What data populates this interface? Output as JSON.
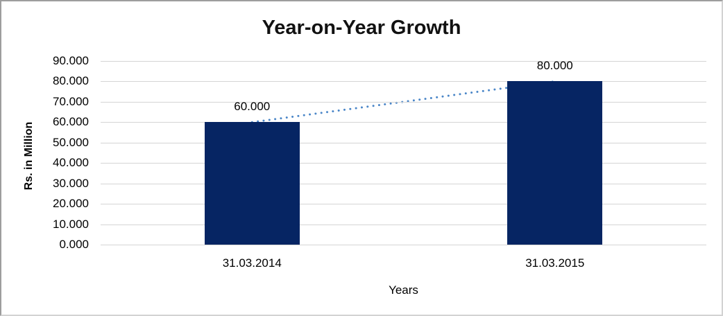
{
  "chart_data": {
    "type": "bar",
    "title": "Year-on-Year Growth",
    "xlabel": "Years",
    "ylabel": "Rs. in Million",
    "categories": [
      "31.03.2014",
      "31.03.2015"
    ],
    "values": [
      60,
      80
    ],
    "data_labels": [
      "60.000",
      "80.000"
    ],
    "series": [
      {
        "name": "Rs. in Million",
        "values": [
          60,
          80
        ]
      }
    ],
    "y_ticks": [
      "90.000",
      "80.000",
      "70.000",
      "60.000",
      "50.000",
      "40.000",
      "30.000",
      "20.000",
      "10.000",
      "0.000"
    ],
    "ylim": [
      0,
      90
    ],
    "grid": "horizontal",
    "legend": "none",
    "colors": {
      "bar": "#062563",
      "trendline": "#4a86c8",
      "gridline": "#d4d4d4",
      "text": "#000000",
      "frame_border": "#9d9d9d"
    },
    "trendline": {
      "style": "dotted",
      "points": [
        60,
        80
      ]
    }
  }
}
